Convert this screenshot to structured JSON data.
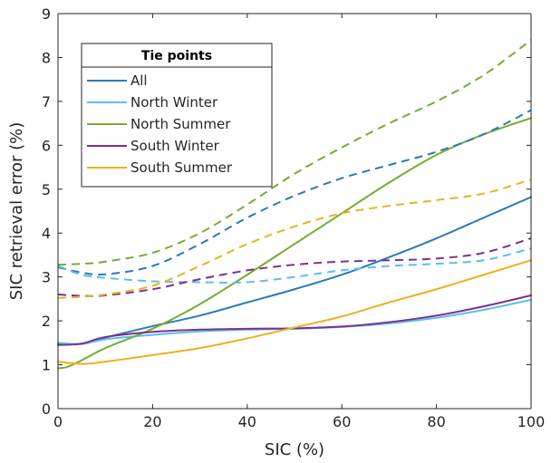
{
  "chart_data": {
    "type": "line",
    "xlabel": "SIC (%)",
    "ylabel": "SIC retrieval error (%)",
    "xlim": [
      0,
      100
    ],
    "ylim": [
      0,
      9
    ],
    "x_ticks": [
      0,
      20,
      40,
      60,
      80,
      100
    ],
    "y_ticks": [
      0,
      1,
      2,
      3,
      4,
      5,
      6,
      7,
      8,
      9
    ],
    "grid": false,
    "legend": {
      "title": "Tie points",
      "placement": "top-left",
      "entries": [
        "All",
        "North Winter",
        "North Summer",
        "South Winter",
        "South Summer"
      ]
    },
    "line_styles": {
      "solid": "solid",
      "dashed": "dashed"
    },
    "series": [
      {
        "name": "All",
        "color": "#2a7ab9",
        "style": "solid",
        "x": [
          0,
          5,
          10,
          20,
          30,
          40,
          50,
          60,
          70,
          80,
          90,
          100
        ],
        "y": [
          1.47,
          1.48,
          1.62,
          1.88,
          2.12,
          2.42,
          2.72,
          3.05,
          3.45,
          3.88,
          4.35,
          4.82
        ]
      },
      {
        "name": "North Winter",
        "color": "#5bbfee",
        "style": "solid",
        "x": [
          0,
          5,
          10,
          20,
          30,
          40,
          50,
          60,
          70,
          80,
          90,
          100
        ],
        "y": [
          1.5,
          1.47,
          1.58,
          1.68,
          1.76,
          1.8,
          1.82,
          1.86,
          1.94,
          2.07,
          2.25,
          2.48
        ]
      },
      {
        "name": "North Summer",
        "color": "#77ac30",
        "style": "solid",
        "x": [
          0,
          2,
          5,
          10,
          20,
          30,
          40,
          50,
          60,
          70,
          80,
          90,
          100
        ],
        "y": [
          0.92,
          0.95,
          1.1,
          1.38,
          1.82,
          2.38,
          3.05,
          3.75,
          4.45,
          5.15,
          5.78,
          6.25,
          6.62
        ]
      },
      {
        "name": "South Winter",
        "color": "#7e2f8e",
        "style": "solid",
        "x": [
          0,
          5,
          10,
          20,
          30,
          40,
          50,
          60,
          70,
          80,
          90,
          100
        ],
        "y": [
          1.45,
          1.48,
          1.63,
          1.75,
          1.8,
          1.82,
          1.83,
          1.87,
          1.97,
          2.12,
          2.33,
          2.58
        ]
      },
      {
        "name": "South Summer",
        "color": "#edb120",
        "style": "solid",
        "x": [
          0,
          5,
          10,
          20,
          30,
          40,
          50,
          60,
          70,
          80,
          90,
          100
        ],
        "y": [
          1.07,
          1.02,
          1.07,
          1.22,
          1.38,
          1.6,
          1.85,
          2.1,
          2.42,
          2.72,
          3.05,
          3.38
        ]
      },
      {
        "name": "All",
        "color": "#2a7ab9",
        "style": "dashed",
        "x": [
          0,
          5,
          10,
          20,
          30,
          40,
          50,
          60,
          70,
          80,
          90,
          100
        ],
        "y": [
          3.22,
          3.1,
          3.06,
          3.25,
          3.75,
          4.35,
          4.85,
          5.25,
          5.55,
          5.85,
          6.25,
          6.8
        ]
      },
      {
        "name": "North Winter",
        "color": "#5bbfee",
        "style": "dashed",
        "x": [
          0,
          5,
          10,
          20,
          30,
          40,
          50,
          60,
          70,
          80,
          90,
          100
        ],
        "y": [
          3.25,
          3.05,
          2.98,
          2.9,
          2.88,
          2.88,
          3.0,
          3.15,
          3.25,
          3.3,
          3.38,
          3.65
        ]
      },
      {
        "name": "North Summer",
        "color": "#77ac30",
        "style": "dashed",
        "x": [
          0,
          5,
          10,
          20,
          30,
          40,
          50,
          60,
          70,
          80,
          90,
          100
        ],
        "y": [
          3.28,
          3.3,
          3.35,
          3.55,
          4.0,
          4.65,
          5.35,
          5.95,
          6.5,
          7.0,
          7.6,
          8.4
        ]
      },
      {
        "name": "South Winter",
        "color": "#7e2f8e",
        "style": "dashed",
        "x": [
          0,
          5,
          10,
          20,
          30,
          40,
          50,
          60,
          70,
          80,
          90,
          100
        ],
        "y": [
          2.6,
          2.57,
          2.58,
          2.72,
          2.95,
          3.15,
          3.28,
          3.35,
          3.38,
          3.42,
          3.55,
          3.88
        ]
      },
      {
        "name": "South Summer",
        "color": "#edb120",
        "style": "dashed",
        "x": [
          0,
          5,
          10,
          20,
          30,
          40,
          50,
          60,
          70,
          80,
          90,
          100
        ],
        "y": [
          2.52,
          2.55,
          2.6,
          2.8,
          3.25,
          3.75,
          4.15,
          4.45,
          4.62,
          4.75,
          4.9,
          5.22
        ]
      }
    ]
  }
}
